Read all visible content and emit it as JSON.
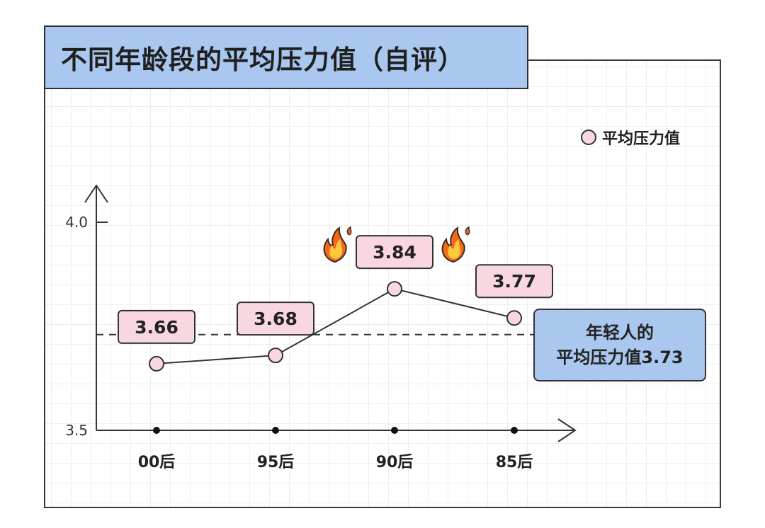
{
  "title": "不同年龄段的平均压力值（自评）",
  "legend": {
    "label": "平均压力值"
  },
  "average_note": {
    "line1": "年轻人的",
    "line2": "平均压力值3.73"
  },
  "colors": {
    "title_bg": "#a9c7ef",
    "marker_fill": "#f8d7e0",
    "label_bg": "#f8d7e0",
    "line": "#333333"
  },
  "icons": [
    "fire-icon",
    "fire-icon"
  ],
  "chart_data": {
    "type": "line",
    "title": "不同年龄段的平均压力值（自评）",
    "categories": [
      "00后",
      "95后",
      "90后",
      "85后"
    ],
    "series": [
      {
        "name": "平均压力值",
        "values": [
          3.66,
          3.68,
          3.84,
          3.77
        ]
      }
    ],
    "value_labels": [
      "3.66",
      "3.68",
      "3.84",
      "3.77"
    ],
    "yticks": [
      "3.5",
      "4.0"
    ],
    "ylim": [
      3.5,
      4.0
    ],
    "reference_line": {
      "value": 3.73,
      "style": "dashed"
    },
    "legend_position": "top-right",
    "grid": true
  }
}
